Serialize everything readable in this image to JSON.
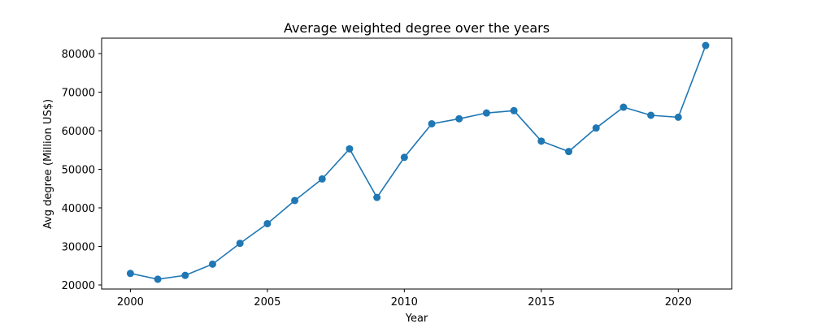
{
  "chart_data": {
    "type": "line",
    "title": "Average weighted degree over the years",
    "xlabel": "Year",
    "ylabel": "Avg degree (Million US$)",
    "xlim": [
      1998.95,
      2021.95
    ],
    "ylim": [
      18950,
      84000
    ],
    "xticks": [
      2000,
      2005,
      2010,
      2015,
      2020
    ],
    "yticks": [
      20000,
      30000,
      40000,
      50000,
      60000,
      70000,
      80000
    ],
    "grid": false,
    "legend": "none",
    "series": [
      {
        "color": "#1f77b4",
        "marker": "circle",
        "x": [
          2000,
          2001,
          2002,
          2003,
          2004,
          2005,
          2006,
          2007,
          2008,
          2009,
          2010,
          2011,
          2012,
          2013,
          2014,
          2015,
          2016,
          2017,
          2018,
          2019,
          2020,
          2021
        ],
        "y": [
          23000,
          21500,
          22500,
          25400,
          30800,
          35900,
          41900,
          47500,
          55300,
          42700,
          53100,
          61800,
          63100,
          64600,
          65200,
          57300,
          54600,
          60700,
          66100,
          64000,
          63500,
          82100
        ]
      }
    ]
  }
}
